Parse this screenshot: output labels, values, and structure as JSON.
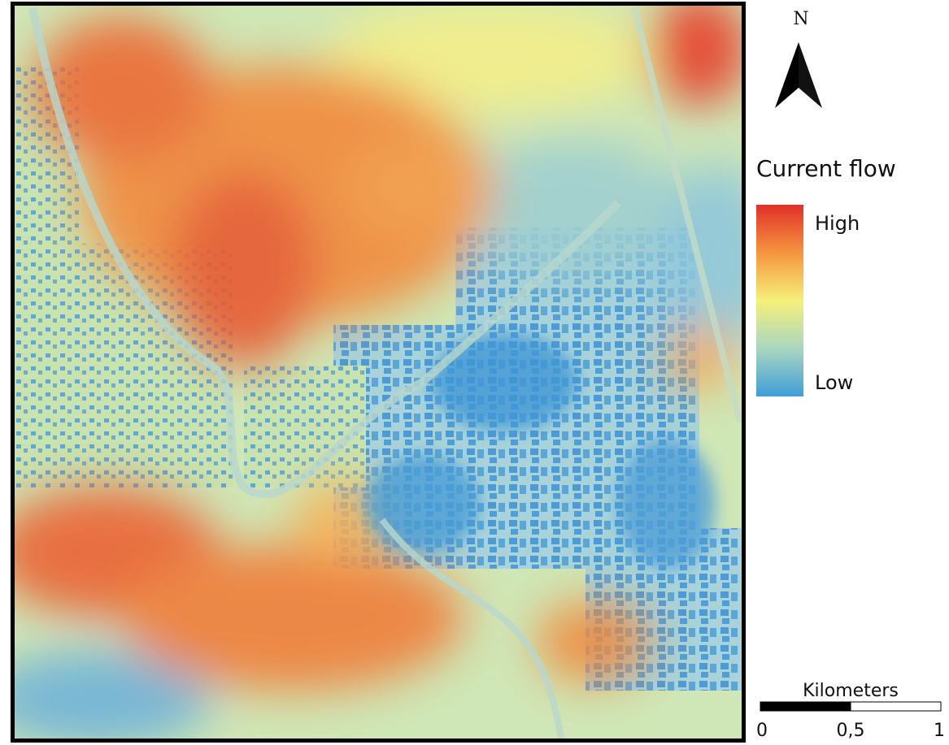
{
  "north_arrow": {
    "label": "N"
  },
  "legend": {
    "title": "Current flow",
    "high": "High",
    "low": "Low"
  },
  "scale_bar": {
    "title": "Kilometers",
    "labels": [
      "0",
      "0,5",
      "1"
    ]
  }
}
